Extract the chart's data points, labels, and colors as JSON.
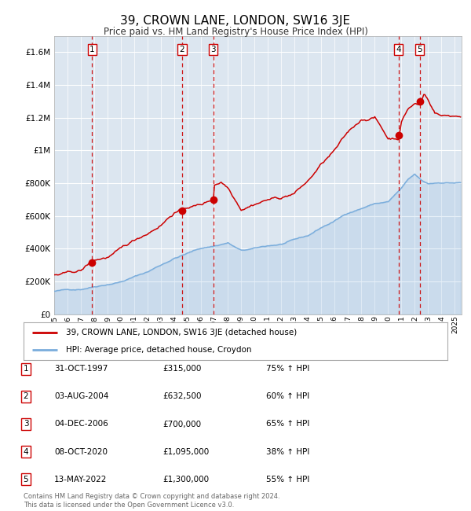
{
  "title": "39, CROWN LANE, LONDON, SW16 3JE",
  "subtitle": "Price paid vs. HM Land Registry's House Price Index (HPI)",
  "title_fontsize": 11,
  "subtitle_fontsize": 8.5,
  "plot_bg_color": "#dce6f0",
  "grid_color": "#ffffff",
  "sale_dates": [
    1997.83,
    2004.58,
    2006.92,
    2020.77,
    2022.37
  ],
  "sale_prices": [
    315000,
    632500,
    700000,
    1095000,
    1300000
  ],
  "sale_labels": [
    "1",
    "2",
    "3",
    "4",
    "5"
  ],
  "sale_info": [
    [
      "1",
      "31-OCT-1997",
      "£315,000",
      "75% ↑ HPI"
    ],
    [
      "2",
      "03-AUG-2004",
      "£632,500",
      "60% ↑ HPI"
    ],
    [
      "3",
      "04-DEC-2006",
      "£700,000",
      "65% ↑ HPI"
    ],
    [
      "4",
      "08-OCT-2020",
      "£1,095,000",
      "38% ↑ HPI"
    ],
    [
      "5",
      "13-MAY-2022",
      "£1,300,000",
      "55% ↑ HPI"
    ]
  ],
  "red_line_color": "#cc0000",
  "blue_line_color": "#7aaddc",
  "marker_color": "#cc0000",
  "dashed_color": "#cc0000",
  "legend_label_red": "39, CROWN LANE, LONDON, SW16 3JE (detached house)",
  "legend_label_blue": "HPI: Average price, detached house, Croydon",
  "footer": "Contains HM Land Registry data © Crown copyright and database right 2024.\nThis data is licensed under the Open Government Licence v3.0.",
  "ylim": [
    0,
    1700000
  ],
  "xlim_start": 1995.0,
  "xlim_end": 2025.5,
  "yticks": [
    0,
    200000,
    400000,
    600000,
    800000,
    1000000,
    1200000,
    1400000,
    1600000
  ],
  "ytick_labels": [
    "£0",
    "£200K",
    "£400K",
    "£600K",
    "£800K",
    "£1M",
    "£1.2M",
    "£1.4M",
    "£1.6M"
  ]
}
